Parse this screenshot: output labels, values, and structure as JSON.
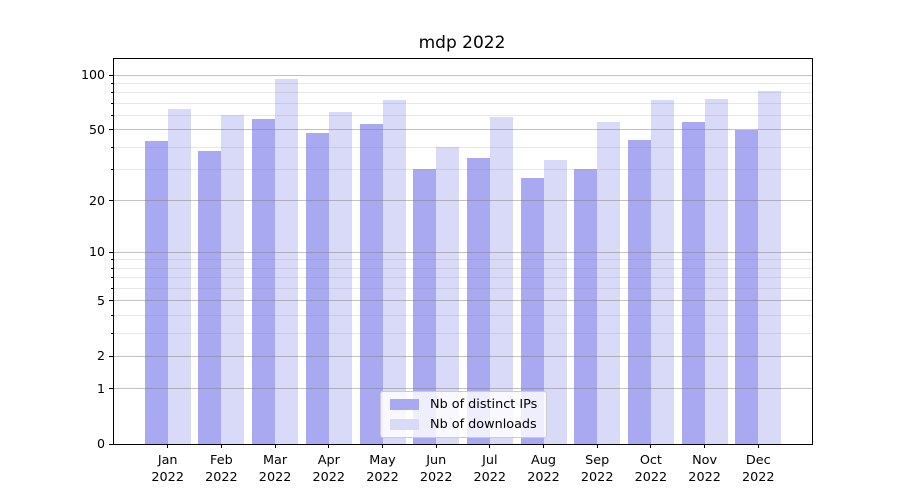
{
  "chart_data": {
    "type": "bar",
    "title": "mdp 2022",
    "categories": [
      "Jan 2022",
      "Feb 2022",
      "Mar 2022",
      "Apr 2022",
      "May 2022",
      "Jun 2022",
      "Jul 2022",
      "Aug 2022",
      "Sep 2022",
      "Oct 2022",
      "Nov 2022",
      "Dec 2022"
    ],
    "months": [
      "Jan",
      "Feb",
      "Mar",
      "Apr",
      "May",
      "Jun",
      "Jul",
      "Aug",
      "Sep",
      "Oct",
      "Nov",
      "Dec"
    ],
    "year": "2022",
    "series": [
      {
        "name": "Nb of distinct IPs",
        "color": "#a9a9f2",
        "values": [
          43,
          38,
          57,
          48,
          54,
          30,
          35,
          27,
          30,
          44,
          55,
          50
        ]
      },
      {
        "name": "Nb of downloads",
        "color": "#d9d9f8",
        "values": [
          65,
          60,
          95,
          63,
          73,
          40,
          59,
          34,
          55,
          73,
          74,
          82
        ]
      }
    ],
    "xlabel": "",
    "ylabel": "",
    "yscale": "symlog",
    "y_major_ticks": [
      0,
      1,
      2,
      5,
      10,
      20,
      50,
      100
    ],
    "y_minor_ticks": [
      3,
      4,
      6,
      7,
      8,
      9,
      30,
      40,
      60,
      70,
      80,
      90
    ],
    "ylim": [
      0,
      123
    ],
    "grid": "both",
    "legend_position": "lower center"
  },
  "colors": {
    "background": "#ffffff",
    "spine": "#000000",
    "grid_major": "rgba(120,120,120,0.45)",
    "grid_minor": "rgba(130,130,130,0.18)",
    "text": "#000000",
    "legend_border": "#cccccc",
    "legend_background": "rgba(255,255,255,0.8)"
  }
}
